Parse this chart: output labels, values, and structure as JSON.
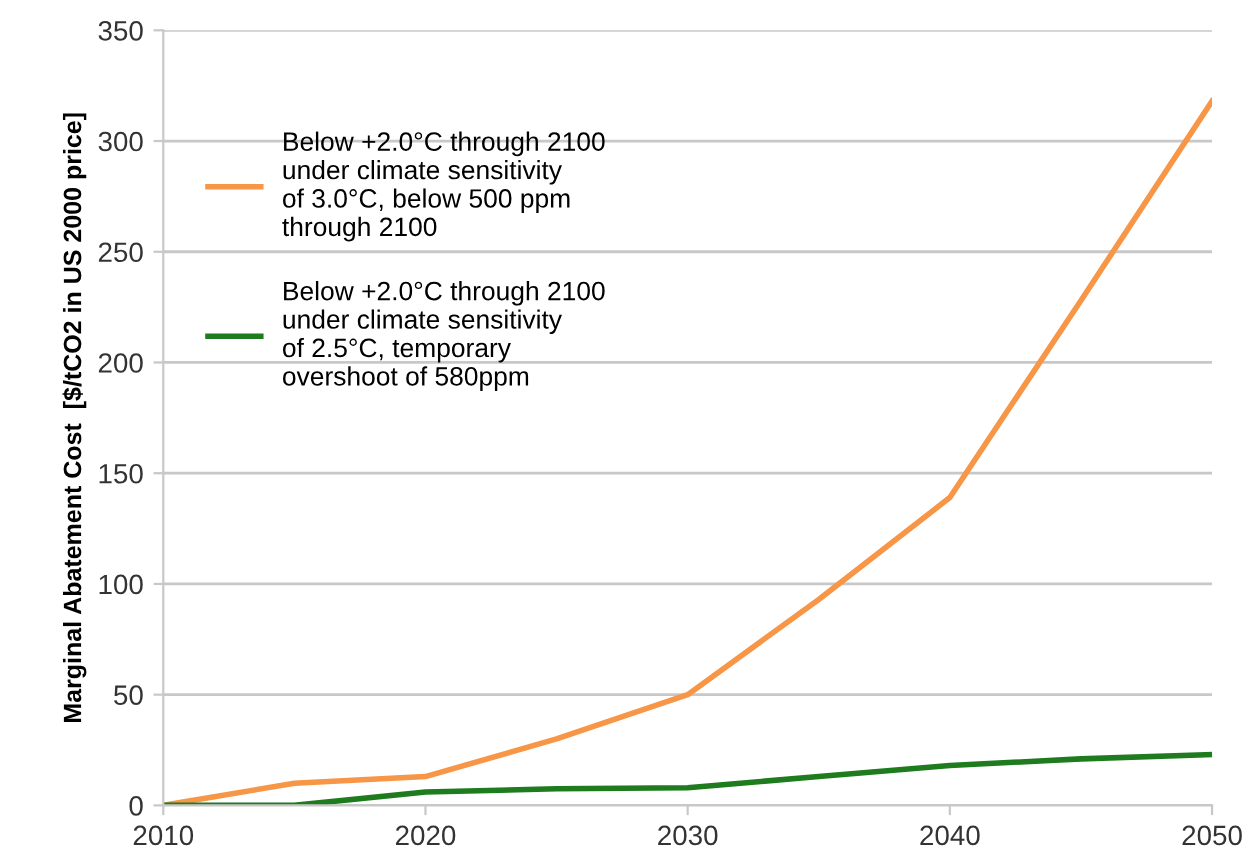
{
  "chart_data": {
    "type": "line",
    "ylabel": "Marginal Abatement Cost  [$/tCO2 in US 2000 price]",
    "x": [
      2010,
      2015,
      2020,
      2025,
      2030,
      2035,
      2040,
      2045,
      2050
    ],
    "series": [
      {
        "name": "Below +2.0°C through 2100 under climate sensitivity of 3.0°C, below 500 ppm through 2100",
        "color": "#f79646",
        "values": [
          0,
          10,
          13,
          30,
          50,
          93,
          139,
          228,
          318
        ]
      },
      {
        "name": "Below +2.0°C through 2100 under climate sensitivity of 2.5°C, temporary overshoot of 580ppm",
        "color": "#1e7b1e",
        "values": [
          0,
          0,
          6,
          7.5,
          8,
          13,
          18,
          21,
          23
        ]
      }
    ],
    "xlim": [
      2010,
      2050
    ],
    "xticks": [
      2010,
      2020,
      2030,
      2040,
      2050
    ],
    "ylim": [
      0,
      350
    ],
    "yticks": [
      0,
      50,
      100,
      150,
      200,
      250,
      300,
      350
    ],
    "grid": "y",
    "legend": "top left",
    "marker": "none",
    "line_style": "solid"
  }
}
